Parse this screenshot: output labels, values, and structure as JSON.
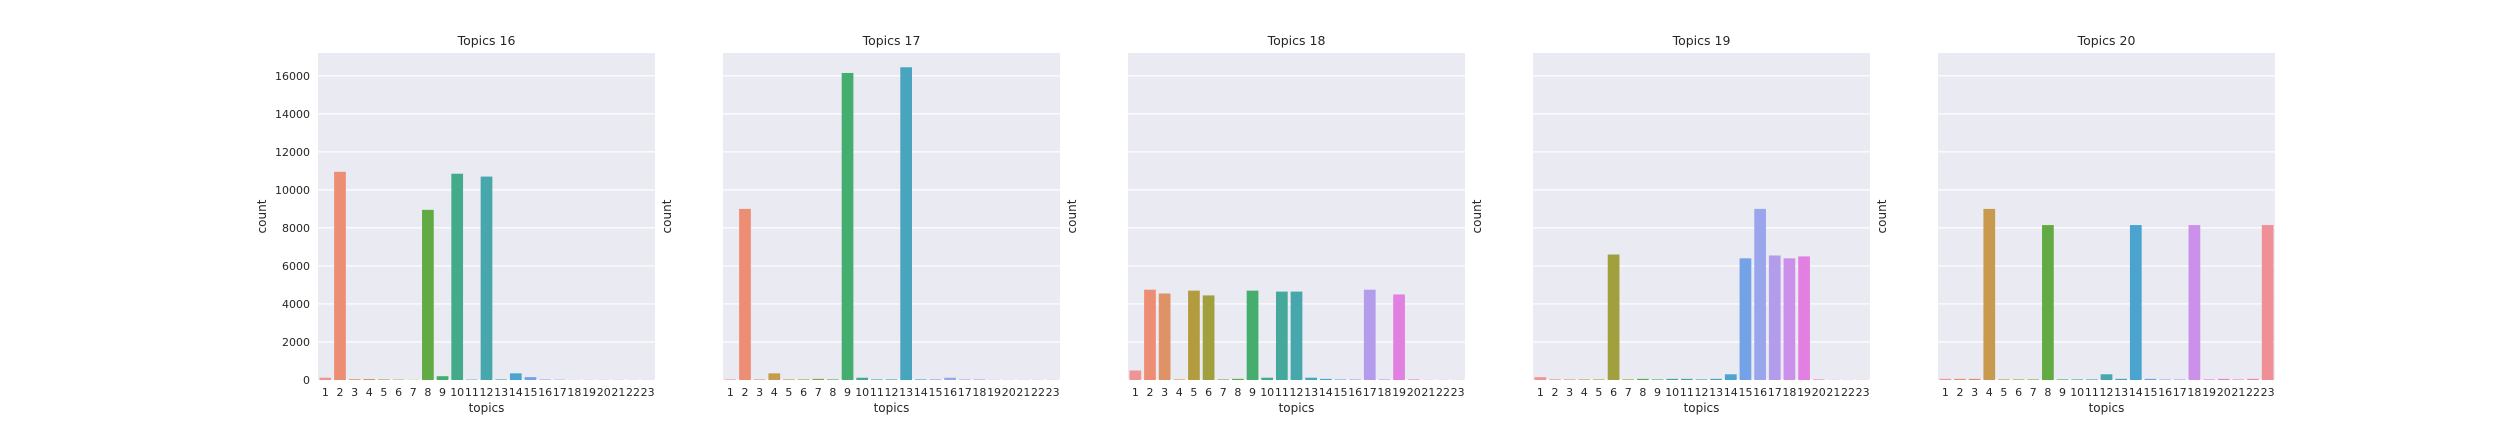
{
  "chart_data": [
    {
      "type": "bar",
      "title": "Topics 16",
      "xlabel": "topics",
      "ylabel": "count",
      "categories": [
        "1",
        "2",
        "3",
        "4",
        "5",
        "6",
        "7",
        "8",
        "9",
        "10",
        "11",
        "12",
        "13",
        "14",
        "15",
        "16",
        "17",
        "18",
        "19",
        "20",
        "21",
        "22",
        "23"
      ],
      "values": [
        120,
        10950,
        40,
        50,
        30,
        20,
        10,
        8950,
        200,
        10850,
        20,
        10700,
        30,
        350,
        150,
        30,
        20,
        10,
        10,
        10,
        10,
        10,
        10
      ],
      "yticks": [
        0,
        2000,
        4000,
        6000,
        8000,
        10000,
        12000,
        14000,
        16000
      ],
      "ylim": [
        0,
        17200
      ],
      "grid": true
    },
    {
      "type": "bar",
      "title": "Topics 17",
      "xlabel": "topics",
      "ylabel": "count",
      "categories": [
        "1",
        "2",
        "3",
        "4",
        "5",
        "6",
        "7",
        "8",
        "9",
        "10",
        "11",
        "12",
        "13",
        "14",
        "15",
        "16",
        "17",
        "18",
        "19",
        "20",
        "21",
        "22",
        "23"
      ],
      "values": [
        30,
        9000,
        30,
        350,
        30,
        30,
        60,
        30,
        16150,
        120,
        30,
        30,
        16450,
        30,
        30,
        120,
        30,
        30,
        10,
        10,
        10,
        10,
        10
      ],
      "ylim": [
        0,
        17200
      ],
      "grid": true
    },
    {
      "type": "bar",
      "title": "Topics 18",
      "xlabel": "topics",
      "ylabel": "count",
      "categories": [
        "1",
        "2",
        "3",
        "4",
        "5",
        "6",
        "7",
        "8",
        "9",
        "10",
        "11",
        "12",
        "13",
        "14",
        "15",
        "16",
        "17",
        "18",
        "19",
        "20",
        "21",
        "22",
        "23"
      ],
      "values": [
        500,
        4750,
        4550,
        30,
        4700,
        4450,
        30,
        60,
        4700,
        120,
        4650,
        4650,
        120,
        60,
        30,
        30,
        4750,
        30,
        4500,
        30,
        10,
        10,
        10
      ],
      "ylim": [
        0,
        17200
      ],
      "grid": true
    },
    {
      "type": "bar",
      "title": "Topics 19",
      "xlabel": "topics",
      "ylabel": "count",
      "categories": [
        "1",
        "2",
        "3",
        "4",
        "5",
        "6",
        "7",
        "8",
        "9",
        "10",
        "11",
        "12",
        "13",
        "14",
        "15",
        "16",
        "17",
        "18",
        "19",
        "20",
        "21",
        "22",
        "23"
      ],
      "values": [
        150,
        30,
        30,
        30,
        30,
        6600,
        30,
        60,
        30,
        60,
        60,
        30,
        60,
        300,
        6400,
        9000,
        6550,
        6400,
        6500,
        30,
        10,
        10,
        10
      ],
      "ylim": [
        0,
        17200
      ],
      "grid": true
    },
    {
      "type": "bar",
      "title": "Topics 20",
      "xlabel": "topics",
      "ylabel": "count",
      "categories": [
        "1",
        "2",
        "3",
        "4",
        "5",
        "6",
        "7",
        "8",
        "9",
        "10",
        "11",
        "12",
        "13",
        "14",
        "15",
        "16",
        "17",
        "18",
        "19",
        "20",
        "21",
        "22",
        "23"
      ],
      "values": [
        60,
        60,
        60,
        9000,
        30,
        30,
        30,
        8150,
        30,
        30,
        30,
        300,
        60,
        8150,
        60,
        30,
        30,
        8150,
        30,
        60,
        30,
        60,
        8150
      ],
      "ylim": [
        0,
        17200
      ],
      "grid": true
    }
  ],
  "colors": {
    "background": "#eaeaf2",
    "grid": "#ffffff",
    "palette": [
      "#f09595",
      "#ec8d74",
      "#dd9365",
      "#c79a4d",
      "#b29c3f",
      "#a0a03f",
      "#8aa43f",
      "#62aa43",
      "#45ae6e",
      "#43ab8a",
      "#44a99c",
      "#47a7ac",
      "#49a5bd",
      "#4ba3cf",
      "#74a2e6",
      "#9aa6ec",
      "#b39ceb",
      "#cb91ea",
      "#e180e0",
      "#e882cc",
      "#ea88b8",
      "#ec8da6",
      "#ee9096"
    ]
  }
}
